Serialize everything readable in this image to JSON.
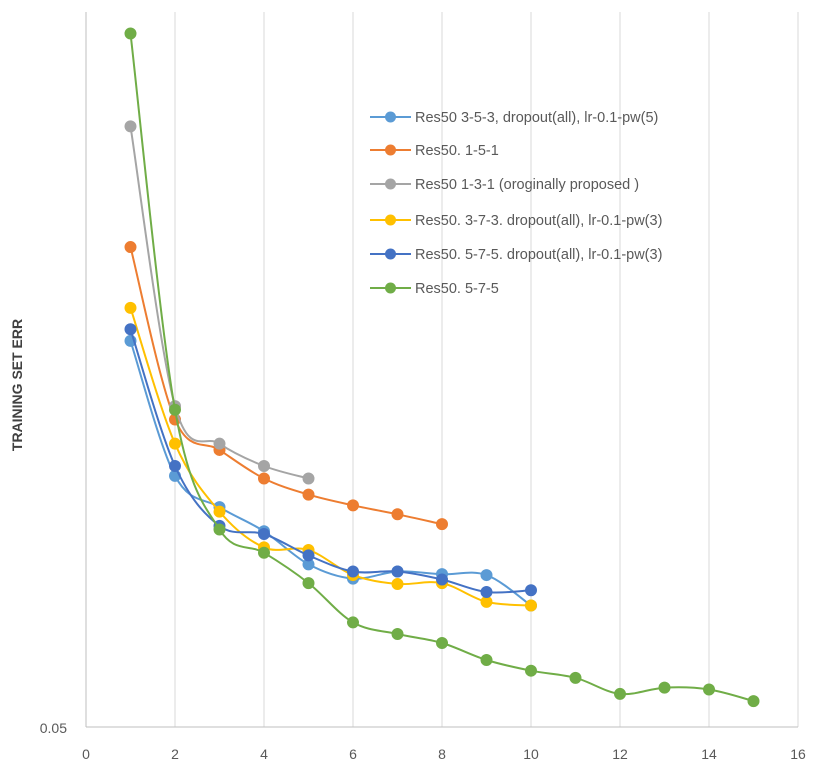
{
  "chart_data": {
    "type": "line",
    "title": "",
    "xlabel": "",
    "ylabel": "TRAINING SET  ERR",
    "xlim": [
      0,
      16
    ],
    "ylim": [
      0.05,
      0.13
    ],
    "x_ticks": [
      0,
      2,
      4,
      6,
      8,
      10,
      12,
      14,
      16
    ],
    "y_tick_labels": [
      "0.05"
    ],
    "grid": "vertical",
    "legend_position": "top-right",
    "series": [
      {
        "name": "Res50 3-5-3, dropout(all), lr-0.1-pw(5)",
        "color": "#5B9BD5",
        "x": [
          1,
          2,
          3,
          4,
          5,
          6,
          7,
          8,
          9,
          10
        ],
        "y": [
          0.0932,
          0.0781,
          0.0746,
          0.0719,
          0.0682,
          0.0666,
          0.0674,
          0.0671,
          0.067,
          0.0636
        ]
      },
      {
        "name": "Res50. 1-5-1",
        "color": "#ED7D31",
        "x": [
          1,
          2,
          3,
          4,
          5,
          6,
          7,
          8
        ],
        "y": [
          0.1037,
          0.0844,
          0.081,
          0.0778,
          0.076,
          0.0748,
          0.0738,
          0.0727
        ]
      },
      {
        "name": "Res50 1-3-1  (oroginally proposed )",
        "color": "#A5A5A5",
        "x": [
          1,
          2,
          3,
          4,
          5
        ],
        "y": [
          0.1172,
          0.0859,
          0.0817,
          0.0792,
          0.0778
        ]
      },
      {
        "name": "Res50.  3-7-3. dropout(all), lr-0.1-pw(3)",
        "color": "#FFC000",
        "x": [
          1,
          2,
          3,
          4,
          5,
          6,
          7,
          8,
          9,
          10
        ],
        "y": [
          0.0969,
          0.0817,
          0.0741,
          0.0701,
          0.0698,
          0.067,
          0.066,
          0.0661,
          0.064,
          0.0636
        ]
      },
      {
        "name": "Res50. 5-7-5. dropout(all), lr-0.1-pw(3)",
        "color": "#4472C4",
        "x": [
          1,
          2,
          3,
          4,
          5,
          6,
          7,
          8,
          9,
          10
        ],
        "y": [
          0.0945,
          0.0792,
          0.0725,
          0.0716,
          0.0692,
          0.0674,
          0.0674,
          0.0665,
          0.0651,
          0.0653
        ]
      },
      {
        "name": "Res50. 5-7-5",
        "color": "#70AD47",
        "x": [
          1,
          2,
          3,
          4,
          5,
          6,
          7,
          8,
          9,
          10,
          11,
          12,
          13,
          14,
          15
        ],
        "y": [
          0.1276,
          0.0855,
          0.0721,
          0.0695,
          0.0661,
          0.0617,
          0.0604,
          0.0594,
          0.0575,
          0.0563,
          0.0555,
          0.0537,
          0.0544,
          0.0542,
          0.0529
        ]
      }
    ]
  }
}
